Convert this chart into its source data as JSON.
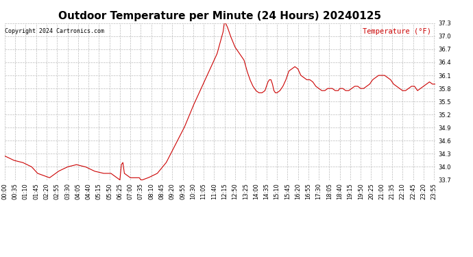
{
  "title": "Outdoor Temperature per Minute (24 Hours) 20240125",
  "copyright_text": "Copyright 2024 Cartronics.com",
  "legend_label": "Temperature (°F)",
  "ylim": [
    33.7,
    37.3
  ],
  "yticks": [
    33.7,
    34.0,
    34.3,
    34.6,
    34.9,
    35.2,
    35.5,
    35.8,
    36.1,
    36.4,
    36.7,
    37.0,
    37.3
  ],
  "line_color": "#cc0000",
  "grid_color": "#bbbbbb",
  "bg_color": "#ffffff",
  "title_fontsize": 11,
  "tick_fontsize": 6.0,
  "legend_color": "#cc0000",
  "copyright_color": "#000000",
  "time_labels": [
    "00:00",
    "00:35",
    "01:10",
    "01:45",
    "02:20",
    "02:55",
    "03:30",
    "04:05",
    "04:40",
    "05:15",
    "05:50",
    "06:25",
    "07:00",
    "07:35",
    "08:10",
    "08:45",
    "09:20",
    "09:55",
    "10:30",
    "11:05",
    "11:40",
    "12:15",
    "12:50",
    "13:25",
    "14:00",
    "14:35",
    "15:10",
    "15:45",
    "16:20",
    "16:55",
    "17:30",
    "18:05",
    "18:40",
    "19:15",
    "19:50",
    "20:25",
    "21:00",
    "21:35",
    "22:10",
    "22:45",
    "23:20",
    "23:55"
  ],
  "keypoints": [
    [
      0,
      34.25
    ],
    [
      30,
      34.15
    ],
    [
      60,
      34.1
    ],
    [
      90,
      34.0
    ],
    [
      110,
      33.85
    ],
    [
      130,
      33.8
    ],
    [
      150,
      33.75
    ],
    [
      180,
      33.9
    ],
    [
      210,
      34.0
    ],
    [
      240,
      34.05
    ],
    [
      270,
      34.0
    ],
    [
      300,
      33.9
    ],
    [
      330,
      33.85
    ],
    [
      355,
      33.85
    ],
    [
      375,
      33.75
    ],
    [
      385,
      33.7
    ],
    [
      390,
      34.05
    ],
    [
      395,
      34.1
    ],
    [
      400,
      33.85
    ],
    [
      420,
      33.75
    ],
    [
      450,
      33.75
    ],
    [
      455,
      33.7
    ],
    [
      460,
      33.7
    ],
    [
      480,
      33.75
    ],
    [
      510,
      33.85
    ],
    [
      540,
      34.1
    ],
    [
      570,
      34.5
    ],
    [
      600,
      34.9
    ],
    [
      630,
      35.4
    ],
    [
      660,
      35.85
    ],
    [
      690,
      36.3
    ],
    [
      700,
      36.45
    ],
    [
      710,
      36.6
    ],
    [
      720,
      36.85
    ],
    [
      730,
      37.1
    ],
    [
      735,
      37.35
    ],
    [
      745,
      37.2
    ],
    [
      755,
      37.0
    ],
    [
      770,
      36.75
    ],
    [
      790,
      36.55
    ],
    [
      800,
      36.45
    ],
    [
      810,
      36.2
    ],
    [
      820,
      36.0
    ],
    [
      830,
      35.85
    ],
    [
      840,
      35.75
    ],
    [
      850,
      35.7
    ],
    [
      860,
      35.7
    ],
    [
      870,
      35.75
    ],
    [
      875,
      35.85
    ],
    [
      880,
      35.95
    ],
    [
      885,
      36.0
    ],
    [
      890,
      36.0
    ],
    [
      895,
      35.9
    ],
    [
      900,
      35.75
    ],
    [
      905,
      35.7
    ],
    [
      910,
      35.7
    ],
    [
      920,
      35.75
    ],
    [
      930,
      35.85
    ],
    [
      940,
      36.0
    ],
    [
      945,
      36.1
    ],
    [
      950,
      36.2
    ],
    [
      960,
      36.25
    ],
    [
      970,
      36.3
    ],
    [
      980,
      36.25
    ],
    [
      990,
      36.1
    ],
    [
      1000,
      36.05
    ],
    [
      1010,
      36.0
    ],
    [
      1015,
      36.0
    ],
    [
      1020,
      36.0
    ],
    [
      1030,
      35.95
    ],
    [
      1040,
      35.85
    ],
    [
      1050,
      35.8
    ],
    [
      1060,
      35.75
    ],
    [
      1070,
      35.75
    ],
    [
      1080,
      35.8
    ],
    [
      1085,
      35.8
    ],
    [
      1095,
      35.8
    ],
    [
      1105,
      35.75
    ],
    [
      1115,
      35.75
    ],
    [
      1120,
      35.8
    ],
    [
      1130,
      35.8
    ],
    [
      1140,
      35.75
    ],
    [
      1150,
      35.75
    ],
    [
      1160,
      35.8
    ],
    [
      1170,
      35.85
    ],
    [
      1180,
      35.85
    ],
    [
      1190,
      35.8
    ],
    [
      1200,
      35.8
    ],
    [
      1210,
      35.85
    ],
    [
      1220,
      35.9
    ],
    [
      1230,
      36.0
    ],
    [
      1240,
      36.05
    ],
    [
      1250,
      36.1
    ],
    [
      1260,
      36.1
    ],
    [
      1270,
      36.1
    ],
    [
      1280,
      36.05
    ],
    [
      1290,
      36.0
    ],
    [
      1300,
      35.9
    ],
    [
      1310,
      35.85
    ],
    [
      1320,
      35.8
    ],
    [
      1330,
      35.75
    ],
    [
      1340,
      35.75
    ],
    [
      1350,
      35.8
    ],
    [
      1360,
      35.85
    ],
    [
      1370,
      35.85
    ],
    [
      1380,
      35.75
    ],
    [
      1390,
      35.8
    ],
    [
      1400,
      35.85
    ],
    [
      1410,
      35.9
    ],
    [
      1420,
      35.95
    ],
    [
      1430,
      35.9
    ],
    [
      1439,
      35.9
    ]
  ]
}
